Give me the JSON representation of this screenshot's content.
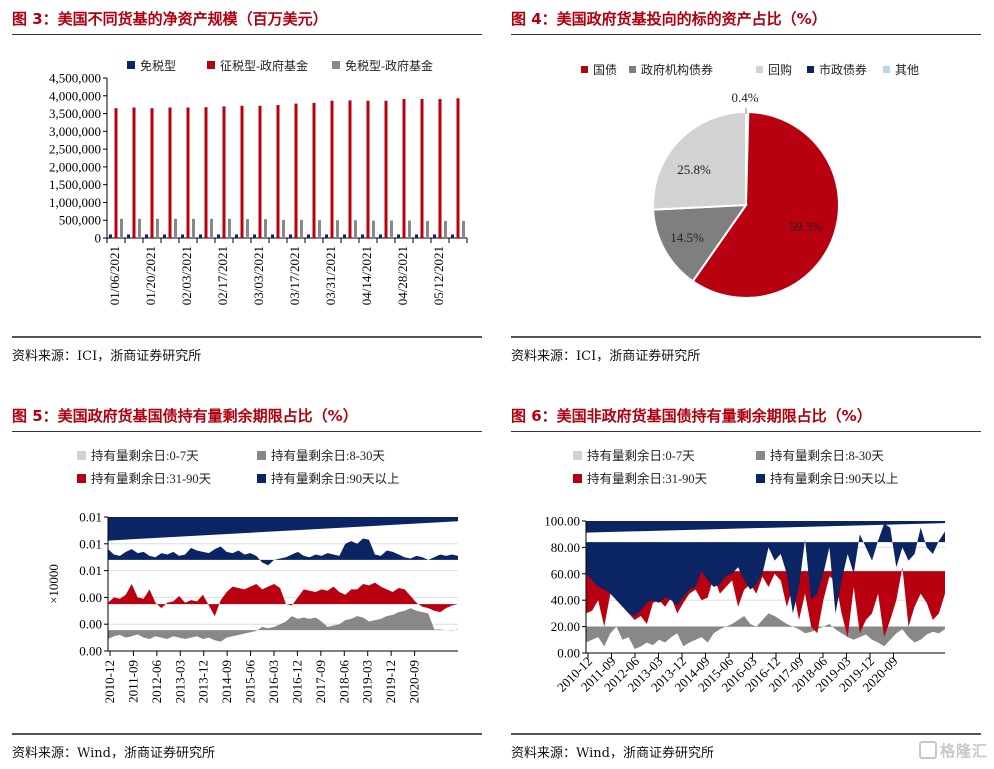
{
  "figures": {
    "fig3": {
      "title": "图 3：美国不同货基的净资产规模（百万美元）",
      "source": "资料来源：ICI，浙商证券研究所"
    },
    "fig4": {
      "title": "图 4：美国政府货基投向的标的资产占比（%）",
      "source": "资料来源：ICI，浙商证券研究所"
    },
    "fig5": {
      "title": "图 5：美国政府货基国债持有量剩余期限占比（%）",
      "source": "资料来源：Wind，浙商证券研究所"
    },
    "fig6": {
      "title": "图 6：美国非政府货基国债持有量剩余期限占比（%）",
      "source": "资料来源：Wind，浙商证券研究所"
    }
  },
  "watermark": "格隆汇",
  "colors": {
    "navy": "#0b2463",
    "red": "#b90010",
    "gray": "#888888",
    "lightgray": "#d2d2d2",
    "lightblue": "#bcd4ee",
    "title_red": "#b00010"
  },
  "chart_data": [
    {
      "id": "fig3",
      "type": "bar",
      "title": "图 3：美国不同货基的净资产规模（百万美元）",
      "xlabel": "",
      "ylabel": "",
      "ylim": [
        0,
        4500000
      ],
      "yticks": [
        "4,500,000",
        "4,000,000",
        "3,500,000",
        "3,000,000",
        "2,500,000",
        "2,000,000",
        "1,500,000",
        "1,000,000",
        "500,000",
        "0"
      ],
      "ytick_values": [
        4500000,
        4000000,
        3500000,
        3000000,
        2500000,
        2000000,
        1500000,
        1000000,
        500000,
        0
      ],
      "xtick_labels": [
        "01/06/2021",
        "01/20/2021",
        "02/03/2021",
        "02/17/2021",
        "03/03/2021",
        "03/17/2021",
        "03/31/2021",
        "04/14/2021",
        "04/28/2021",
        "05/12/2021"
      ],
      "legend": [
        "免税型",
        "征税型-政府基金",
        "免税型-政府基金"
      ],
      "legend_position": "top",
      "group_count": 20,
      "series": [
        {
          "name": "免税型",
          "color": "#0b2463",
          "values": [
            100000,
            100000,
            100000,
            100000,
            100000,
            100000,
            100000,
            100000,
            100000,
            100000,
            100000,
            100000,
            100000,
            100000,
            100000,
            100000,
            100000,
            100000,
            100000,
            100000
          ]
        },
        {
          "name": "征税型-政府基金",
          "color": "#b90010",
          "values": [
            3650000,
            3670000,
            3650000,
            3670000,
            3670000,
            3680000,
            3700000,
            3720000,
            3720000,
            3740000,
            3780000,
            3800000,
            3860000,
            3870000,
            3860000,
            3860000,
            3910000,
            3910000,
            3910000,
            3930000
          ]
        },
        {
          "name": "免税型-政府基金",
          "color": "#888888",
          "values": [
            540000,
            540000,
            540000,
            540000,
            540000,
            540000,
            540000,
            530000,
            530000,
            510000,
            510000,
            500000,
            500000,
            500000,
            490000,
            490000,
            490000,
            480000,
            480000,
            480000
          ]
        }
      ]
    },
    {
      "id": "fig4",
      "type": "pie",
      "title": "图 4：美国政府货基投向的标的资产占比（%）",
      "legend": [
        "国债",
        "政府机构债券",
        "回购",
        "市政债券",
        "其他"
      ],
      "legend_position": "top",
      "slices": [
        {
          "name": "国债",
          "value": 59.3,
          "label": "59.3%",
          "color": "#b90010"
        },
        {
          "name": "政府机构债券",
          "value": 14.5,
          "label": "14.5%",
          "color": "#7f7f7f"
        },
        {
          "name": "回购",
          "value": 25.8,
          "label": "25.8%",
          "color": "#d2d2d2"
        },
        {
          "name": "市政债券",
          "value": 0.0,
          "label": "",
          "color": "#0b2463"
        },
        {
          "name": "其他",
          "value": 0.4,
          "label": "0.4%",
          "color": "#bcd4ee"
        }
      ]
    },
    {
      "id": "fig5",
      "type": "area",
      "title": "图 5：美国政府货基国债持有量剩余期限占比（%）",
      "ylabel": "×10000",
      "yticks": [
        "0.01",
        "0.01",
        "0.01",
        "0.00",
        "0.00",
        "0.00"
      ],
      "ylim": [
        0,
        5
      ],
      "xtick_labels": [
        "2010-12",
        "2011-09",
        "2012-06",
        "2013-03",
        "2013-12",
        "2014-09",
        "2015-06",
        "2016-03",
        "2016-12",
        "2017-09",
        "2018-06",
        "2019-03",
        "2019-12",
        "2020-09"
      ],
      "legend": [
        "持有量剩余日:0-7天",
        "持有量剩余日:8-30天",
        "持有量剩余日:31-90天",
        "持有量剩余日:90天以上"
      ],
      "legend_position": "top",
      "series": [
        {
          "name": "持有量剩余日:8-30天",
          "color": "#888888",
          "baseline": 0.78,
          "values": [
            0.45,
            0.55,
            0.6,
            0.5,
            0.55,
            0.62,
            0.5,
            0.45,
            0.55,
            0.5,
            0.45,
            0.55,
            0.5,
            0.45,
            0.5,
            0.55,
            0.45,
            0.5,
            0.4,
            0.35,
            0.5,
            0.55,
            0.6,
            0.65,
            0.7,
            0.75,
            0.9,
            0.85,
            0.9,
            1.0,
            1.1,
            1.3,
            1.2,
            1.25,
            1.2,
            1.25,
            1.1,
            0.9,
            0.95,
            1.0,
            1.15,
            1.2,
            1.3,
            1.25,
            1.1,
            1.15,
            1.2,
            1.3,
            1.35,
            1.45,
            1.5,
            1.6,
            1.5,
            1.45,
            1.4,
            0.8,
            0.8,
            0.78,
            0.76,
            0.8
          ]
        },
        {
          "name": "持有量剩余日:31-90天",
          "color": "#b90010",
          "baseline": 1.75,
          "values": [
            1.8,
            2.0,
            1.95,
            2.1,
            2.5,
            2.0,
            1.95,
            2.3,
            1.8,
            1.6,
            1.8,
            1.85,
            2.05,
            1.8,
            1.9,
            1.85,
            2.1,
            1.7,
            1.3,
            1.9,
            2.2,
            2.4,
            2.35,
            2.3,
            2.4,
            2.5,
            2.3,
            2.4,
            2.5,
            2.35,
            1.75,
            1.7,
            2.0,
            2.3,
            2.25,
            2.2,
            2.3,
            2.25,
            2.4,
            2.2,
            2.1,
            2.3,
            2.3,
            2.5,
            2.45,
            2.55,
            2.4,
            2.3,
            2.2,
            2.35,
            2.3,
            2.05,
            1.8,
            1.65,
            1.6,
            1.5,
            1.45,
            1.6,
            1.7,
            1.75
          ]
        },
        {
          "name": "持有量剩余日:90天以上",
          "color": "#0b2463",
          "baseline": 3.4,
          "values": [
            3.8,
            3.6,
            3.55,
            3.7,
            3.8,
            3.65,
            3.7,
            3.55,
            3.5,
            3.65,
            3.6,
            3.7,
            3.55,
            3.6,
            3.85,
            3.75,
            3.7,
            3.65,
            3.8,
            3.9,
            3.7,
            3.65,
            3.75,
            3.6,
            3.65,
            3.55,
            3.3,
            3.2,
            3.4,
            3.45,
            3.5,
            3.6,
            3.7,
            3.55,
            3.5,
            3.6,
            3.55,
            3.65,
            3.6,
            3.55,
            4.0,
            4.1,
            4.0,
            4.2,
            4.15,
            3.6,
            3.55,
            3.75,
            3.7,
            3.6,
            3.5,
            3.45,
            3.55,
            3.5,
            3.4,
            3.5,
            3.6,
            3.55,
            3.6,
            3.55
          ]
        },
        {
          "name": "持有量剩余日:0-7天",
          "color": "#d2d2d2",
          "baseline": 0,
          "values": []
        }
      ]
    },
    {
      "id": "fig6",
      "type": "area",
      "title": "图 6：美国非政府货基国债持有量剩余期限占比（%）",
      "ylabel": "",
      "yticks": [
        "100.00",
        "80.00",
        "60.00",
        "40.00",
        "20.00",
        "0.00"
      ],
      "ylim": [
        0,
        100
      ],
      "xtick_labels": [
        "2010-12",
        "2011-09",
        "2012-06",
        "2013-03",
        "2013-12",
        "2014-09",
        "2015-06",
        "2016-03",
        "2016-12",
        "2017-09",
        "2018-06",
        "2019-03",
        "2019-12",
        "2020-09"
      ],
      "legend": [
        "持有量剩余日:0-7天",
        "持有量剩余日:8-30天",
        "持有量剩余日:31-90天",
        "持有量剩余日:90天以上"
      ],
      "legend_position": "top",
      "series": [
        {
          "name": "持有量剩余日:8-30天",
          "color": "#888888",
          "baseline": 20,
          "values": [
            8,
            10,
            12,
            5,
            15,
            20,
            10,
            12,
            3,
            5,
            8,
            6,
            10,
            8,
            12,
            15,
            5,
            8,
            10,
            12,
            8,
            15,
            18,
            20,
            22,
            25,
            28,
            22,
            20,
            25,
            30,
            28,
            25,
            22,
            20,
            18,
            15,
            16,
            18,
            20,
            22,
            18,
            15,
            12,
            10,
            12,
            14,
            10,
            8,
            5,
            10,
            15,
            18,
            12,
            8,
            10,
            14,
            16,
            15,
            18
          ]
        },
        {
          "name": "持有量剩余日:31-90天",
          "color": "#b90010",
          "baseline": 62,
          "values": [
            30,
            32,
            40,
            20,
            45,
            58,
            50,
            30,
            25,
            28,
            22,
            38,
            40,
            35,
            42,
            30,
            38,
            45,
            48,
            40,
            42,
            58,
            45,
            50,
            55,
            35,
            48,
            52,
            45,
            58,
            50,
            60,
            55,
            35,
            50,
            25,
            45,
            20,
            15,
            40,
            58,
            55,
            30,
            12,
            50,
            15,
            25,
            30,
            45,
            12,
            25,
            40,
            65,
            20,
            35,
            45,
            38,
            25,
            30,
            45
          ]
        },
        {
          "name": "持有量剩余日:90天以上",
          "color": "#0b2463",
          "baseline": 84,
          "values": [
            60,
            55,
            50,
            48,
            45,
            40,
            35,
            30,
            28,
            32,
            38,
            40,
            38,
            42,
            40,
            36,
            42,
            48,
            50,
            62,
            55,
            50,
            52,
            58,
            60,
            65,
            55,
            48,
            52,
            60,
            80,
            70,
            75,
            60,
            30,
            50,
            86,
            40,
            45,
            60,
            80,
            30,
            55,
            75,
            60,
            90,
            80,
            70,
            85,
            98,
            95,
            65,
            80,
            70,
            75,
            95,
            80,
            75,
            85,
            92
          ]
        },
        {
          "name": "持有量剩余日:0-7天",
          "color": "#d2d2d2",
          "baseline": 0,
          "values": []
        }
      ]
    }
  ]
}
